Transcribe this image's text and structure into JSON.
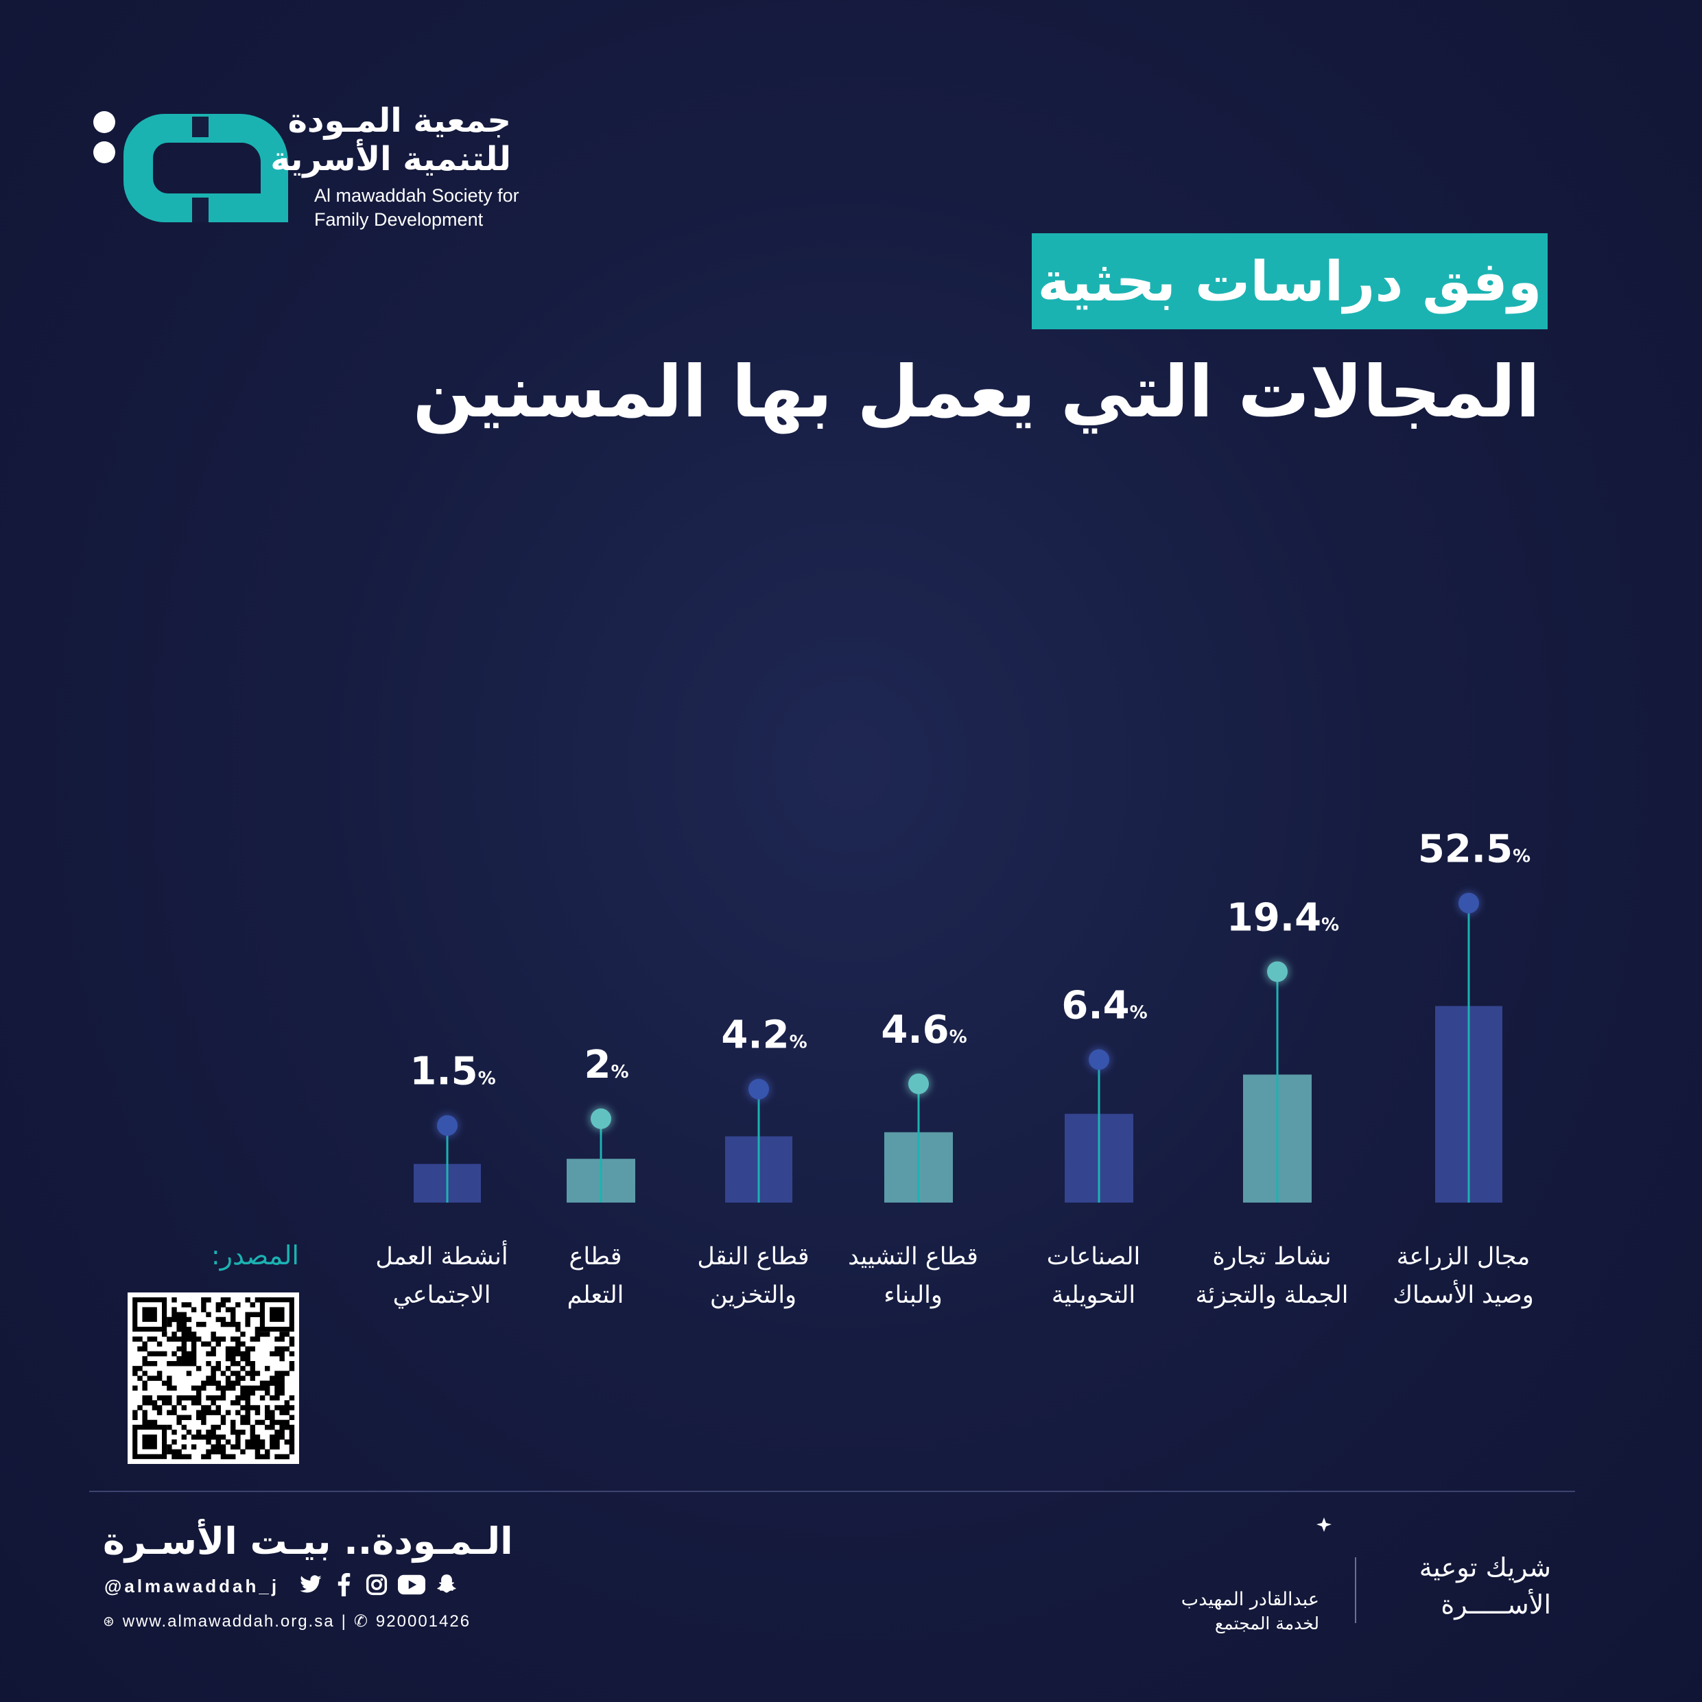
{
  "org": {
    "name_ar_line1": "جمعية المـودة",
    "name_ar_line2": "للتنمية الأسرية",
    "name_en_line1": "Al mawaddah Society for",
    "name_en_line2": "Family Development",
    "logo_color": "#1bb3b2"
  },
  "badge_text": "وفق دراسات بحثية",
  "title": "المجالات التي يعمل بها المسنين",
  "chart_data": {
    "type": "bar",
    "title": "المجالات التي يعمل بها المسنين",
    "categories": [
      [
        "أنشطة العمل",
        "الاجتماعي"
      ],
      [
        "قطاع",
        "التعلم"
      ],
      [
        "قطاع النقل",
        "والتخزين"
      ],
      [
        "قطاع التشييد",
        "والبناء"
      ],
      [
        "الصناعات",
        "التحويلية"
      ],
      [
        "نشاط تجارة",
        "الجملة والتجزئة"
      ],
      [
        "مجال الزراعة",
        "وصيد الأسماك"
      ]
    ],
    "values": [
      1.5,
      2,
      4.2,
      4.6,
      6.4,
      19.4,
      52.5
    ],
    "labels": [
      "1.5",
      "2",
      "4.2",
      "4.6",
      "6.4",
      "19.4",
      "52.5"
    ],
    "unit": "%",
    "colors": [
      "#34448f",
      "#5c9ca8",
      "#34448f",
      "#5c9ca8",
      "#34448f",
      "#5c9ca8",
      "#34448f"
    ],
    "stem_color": "#1bb3b2",
    "grid": false,
    "legend": "none"
  },
  "source_label": "المصدر:",
  "footer": {
    "slogan": "الـمـودة.. بيـت الأسـرة",
    "handle": "@almawaddah_j",
    "website": "www.almawaddah.org.sa",
    "phone": "920001426",
    "social_icons": [
      "twitter-icon",
      "facebook-icon",
      "instagram-icon",
      "youtube-icon",
      "snapchat-icon"
    ]
  },
  "sponsor": {
    "name": "عبدالقادر المهيدب",
    "sub": "لخدمة المجتمع"
  },
  "partner": {
    "line1": "شريك توعية",
    "line2": "الأســـــرة"
  }
}
